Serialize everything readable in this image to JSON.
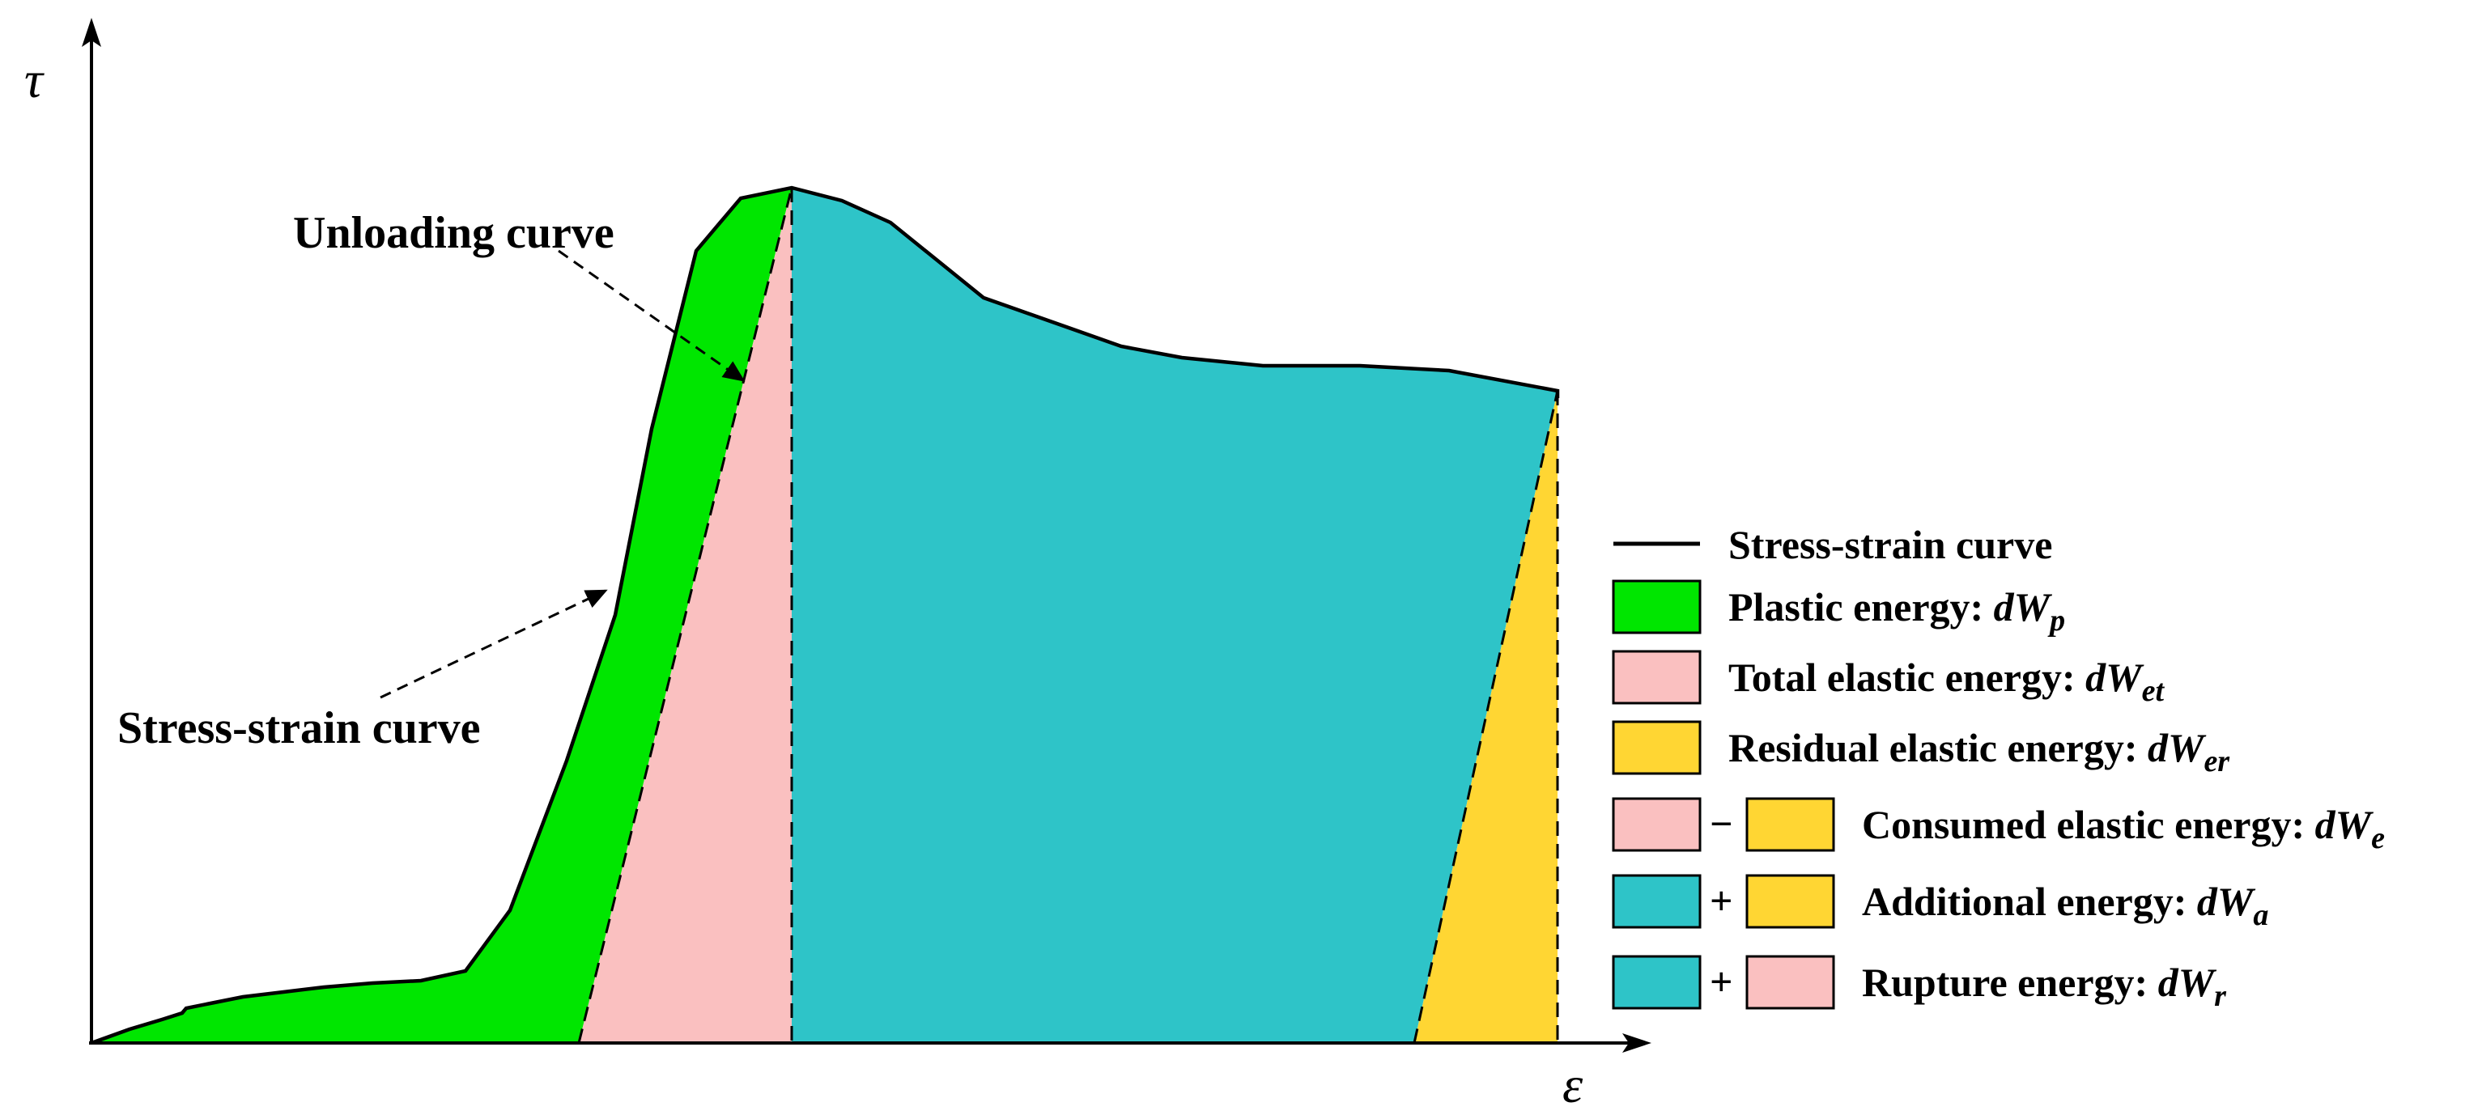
{
  "axes": {
    "y_symbol": "τ",
    "x_symbol": "ε"
  },
  "annotations": {
    "unloading": "Unloading curve",
    "stress_strain": "Stress-strain curve"
  },
  "legend": {
    "curve": "Stress-strain curve",
    "plastic": {
      "label": "Plastic energy: ",
      "sym": "dW",
      "sub": "p"
    },
    "total_elastic": {
      "label": "Total elastic energy: ",
      "sym": "dW",
      "sub": "et"
    },
    "residual_elastic": {
      "label": "Residual elastic energy: ",
      "sym": "dW",
      "sub": "er"
    },
    "consumed_elastic": {
      "op": "−",
      "label": "Consumed elastic energy: ",
      "sym": "dW",
      "sub": "e"
    },
    "additional": {
      "op": "+",
      "label": "Additional energy: ",
      "sym": "dW",
      "sub": "a"
    },
    "rupture": {
      "op": "+",
      "label": "Rupture energy: ",
      "sym": "dW",
      "sub": "r"
    }
  },
  "colors": {
    "plastic": "#00e600",
    "total_elastic": "#fac0c0",
    "residual_elastic": "#ffd633",
    "additional": "#2ec4c8",
    "line": "#000000"
  }
}
